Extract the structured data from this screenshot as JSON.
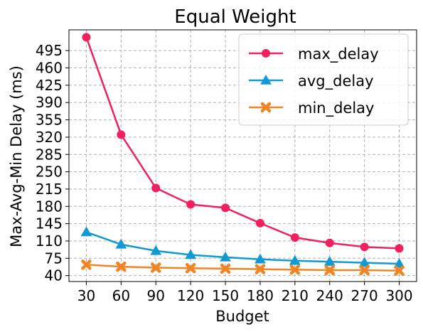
{
  "chart_data": {
    "type": "line",
    "title": "Equal Weight",
    "xlabel": "Budget",
    "ylabel": "Max-Avg-Min Delay (ms)",
    "x": [
      30,
      60,
      90,
      120,
      150,
      180,
      210,
      240,
      270,
      300
    ],
    "x_ticks": [
      "30",
      "60",
      "90",
      "120",
      "150",
      "180",
      "210",
      "240",
      "270",
      "300"
    ],
    "y_ticks": [
      "40",
      "75",
      "110",
      "145",
      "180",
      "215",
      "250",
      "285",
      "320",
      "355",
      "390",
      "425",
      "460",
      "495"
    ],
    "ylim": [
      28,
      537
    ],
    "grid": true,
    "legend_position": "top-right",
    "series": [
      {
        "name": "max_delay",
        "color": "#f0215e",
        "marker": "circle",
        "values": [
          522,
          325,
          217,
          184,
          177,
          146,
          117,
          106,
          98,
          95
        ]
      },
      {
        "name": "avg_delay",
        "color": "#1199d3",
        "marker": "triangle",
        "values": [
          128,
          103,
          90,
          82,
          77,
          73,
          70,
          68,
          66,
          64
        ]
      },
      {
        "name": "min_delay",
        "color": "#f08523",
        "marker": "x-cross",
        "values": [
          62,
          58,
          56,
          55,
          54,
          53,
          52,
          51,
          51,
          50
        ]
      }
    ]
  }
}
